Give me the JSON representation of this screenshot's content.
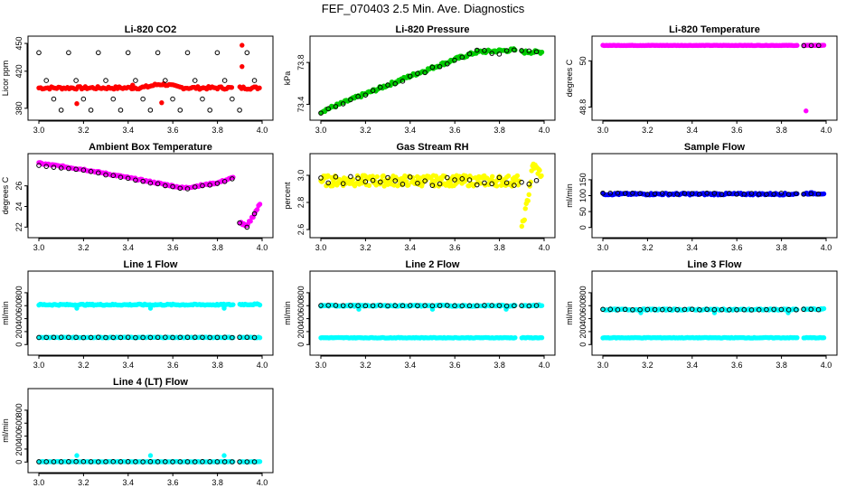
{
  "title": "FEF_070403  2.5 Min. Ave. Diagnostics",
  "colors": {
    "black": "#000000",
    "red": "#ff0000",
    "green": "#00cc00",
    "magenta": "#ff00ff",
    "yellow": "#ffff00",
    "blue": "#0000ff",
    "cyan": "#00ffff"
  },
  "chart_data": [
    {
      "type": "scatter",
      "title": "Li-820 CO2",
      "ylabel": "Licor ppm",
      "xlim": [
        3.0,
        4.0
      ],
      "ylim": [
        373,
        452
      ],
      "xticks": [
        "3.0",
        "3.2",
        "3.4",
        "3.6",
        "3.8",
        "4.0"
      ],
      "yticks": [
        {
          "v": 380,
          "label": "380"
        },
        {
          "v": 420,
          "label": "420"
        },
        {
          "v": 450,
          "label": "450"
        }
      ],
      "series": [
        {
          "name": "CO2 red",
          "color": "red",
          "fill": true,
          "start": 3.0,
          "end": 3.87,
          "step": 0.008,
          "base": 402,
          "bump": [
            3.55,
            0.06,
            4
          ],
          "noise": 1.5,
          "outliers": [
            [
              3.17,
              385
            ],
            [
              3.42,
              405
            ],
            [
              3.55,
              386
            ]
          ]
        },
        {
          "name": "CO2 red (2)",
          "color": "red",
          "fill": true,
          "start": 3.9,
          "end": 3.99,
          "step": 0.008,
          "base": 402,
          "noise": 1.5,
          "outliers": [
            [
              3.91,
              448
            ],
            [
              3.91,
              425
            ]
          ]
        },
        {
          "name": "CO2 black",
          "color": "black",
          "fill": false,
          "start": 3.0,
          "end": 3.99,
          "step": 0.0333,
          "levels": [
            440,
            410,
            390,
            378
          ],
          "noise": 0
        }
      ]
    },
    {
      "type": "scatter",
      "title": "Li-820 Pressure",
      "ylabel": "kPa",
      "xlim": [
        3.0,
        4.0
      ],
      "ylim": [
        73.3,
        74.0
      ],
      "xticks": [
        "3.0",
        "3.2",
        "3.4",
        "3.6",
        "3.8",
        "4.0"
      ],
      "yticks": [
        {
          "v": 73.4,
          "label": "73.4"
        },
        {
          "v": 73.8,
          "label": "73.8"
        }
      ],
      "series": [
        {
          "name": "Pressure green",
          "color": "green",
          "fill": true,
          "start": 3.0,
          "end": 3.87,
          "step": 0.006,
          "path": [
            [
              3.0,
              73.33
            ],
            [
              3.2,
              73.5
            ],
            [
              3.4,
              73.67
            ],
            [
              3.6,
              73.83
            ],
            [
              3.7,
              73.9
            ],
            [
              3.87,
              73.92
            ]
          ],
          "noise": 0.015
        },
        {
          "name": "Pressure green (2)",
          "color": "green",
          "fill": true,
          "start": 3.9,
          "end": 3.99,
          "step": 0.006,
          "path": [
            [
              3.9,
              73.9
            ],
            [
              3.99,
              73.9
            ]
          ],
          "noise": 0.015
        },
        {
          "name": "Pressure black",
          "color": "black",
          "fill": false,
          "start": 3.0,
          "end": 3.99,
          "step": 0.0333,
          "path": [
            [
              3.0,
              73.33
            ],
            [
              3.2,
              73.5
            ],
            [
              3.4,
              73.67
            ],
            [
              3.6,
              73.83
            ],
            [
              3.7,
              73.9
            ],
            [
              3.99,
              73.9
            ]
          ],
          "noise": 0.02
        }
      ]
    },
    {
      "type": "scatter",
      "title": "Li-820 Temperature",
      "ylabel": "degrees C",
      "xlim": [
        3.0,
        4.0
      ],
      "ylim": [
        48.6,
        50.5
      ],
      "xticks": [
        "3.0",
        "3.2",
        "3.4",
        "3.6",
        "3.8",
        "4.0"
      ],
      "yticks": [
        {
          "v": 48.8,
          "label": "48.8"
        },
        {
          "v": 50.0,
          "label": "50"
        }
      ],
      "series": [
        {
          "name": "Temp magenta",
          "color": "magenta",
          "fill": true,
          "start": 3.0,
          "end": 3.87,
          "step": 0.006,
          "base": 50.4,
          "noise": 0.005,
          "outliers": [
            [
              3.91,
              48.7
            ]
          ]
        },
        {
          "name": "Temp magenta (2)",
          "color": "magenta",
          "fill": true,
          "start": 3.9,
          "end": 3.99,
          "step": 0.006,
          "base": 50.4,
          "noise": 0.005
        },
        {
          "name": "Temp black",
          "color": "black",
          "fill": false,
          "start": 3.9,
          "end": 3.99,
          "step": 0.0333,
          "base": 50.4,
          "noise": 0.005
        }
      ]
    },
    {
      "type": "scatter",
      "title": "Ambient Box Temperature",
      "ylabel": "degrees C",
      "xlim": [
        3.0,
        4.0
      ],
      "ylim": [
        21.5,
        28.6
      ],
      "xticks": [
        "3.0",
        "3.2",
        "3.4",
        "3.6",
        "3.8",
        "4.0"
      ],
      "yticks": [
        {
          "v": 22,
          "label": "22"
        },
        {
          "v": 24,
          "label": "24"
        },
        {
          "v": 26,
          "label": "26"
        }
      ],
      "series": [
        {
          "name": "Ambient magenta",
          "color": "magenta",
          "fill": true,
          "start": 3.0,
          "end": 3.87,
          "step": 0.006,
          "path": [
            [
              3.0,
              28.2
            ],
            [
              3.2,
              27.6
            ],
            [
              3.4,
              26.8
            ],
            [
              3.65,
              25.8
            ],
            [
              3.8,
              26.3
            ],
            [
              3.87,
              26.8
            ]
          ],
          "noise": 0.08
        },
        {
          "name": "Ambient magenta (2)",
          "color": "magenta",
          "fill": true,
          "start": 3.9,
          "end": 3.99,
          "step": 0.006,
          "path": [
            [
              3.9,
              22.5
            ],
            [
              3.93,
              22.0
            ],
            [
              3.99,
              24.2
            ]
          ],
          "noise": 0.15
        },
        {
          "name": "Ambient black",
          "color": "black",
          "fill": false,
          "start": 3.0,
          "end": 3.99,
          "step": 0.0333,
          "path": [
            [
              3.0,
              28.0
            ],
            [
              3.2,
              27.5
            ],
            [
              3.4,
              26.7
            ],
            [
              3.65,
              25.7
            ],
            [
              3.8,
              26.2
            ],
            [
              3.87,
              26.7
            ],
            [
              3.9,
              22.3
            ],
            [
              3.93,
              21.9
            ],
            [
              3.99,
              24.3
            ]
          ],
          "noise": 0.05
        }
      ]
    },
    {
      "type": "scatter",
      "title": "Gas Stream RH",
      "ylabel": "percent",
      "xlim": [
        3.0,
        4.0
      ],
      "ylim": [
        2.58,
        3.12
      ],
      "xticks": [
        "3.0",
        "3.2",
        "3.4",
        "3.6",
        "3.8",
        "4.0"
      ],
      "yticks": [
        {
          "v": 2.6,
          "label": "2.6"
        },
        {
          "v": 2.8,
          "label": "2.8"
        },
        {
          "v": 3.0,
          "label": "3.0"
        }
      ],
      "series": [
        {
          "name": "RH yellow",
          "color": "yellow",
          "fill": true,
          "start": 3.0,
          "end": 3.89,
          "step": 0.004,
          "base": 2.96,
          "noise": 0.04
        },
        {
          "name": "RH yellow (2)",
          "color": "yellow",
          "fill": true,
          "start": 3.9,
          "end": 3.99,
          "step": 0.004,
          "path": [
            [
              3.9,
              2.6
            ],
            [
              3.93,
              2.85
            ],
            [
              3.95,
              3.08
            ],
            [
              3.99,
              3.0
            ]
          ],
          "noise": 0.03
        },
        {
          "name": "RH black",
          "color": "black",
          "fill": false,
          "start": 3.0,
          "end": 3.99,
          "step": 0.0333,
          "base": 2.96,
          "noise": 0.035
        }
      ]
    },
    {
      "type": "scatter",
      "title": "Sample Flow",
      "ylabel": "ml/min",
      "xlim": [
        3.0,
        4.0
      ],
      "ylim": [
        -15,
        215
      ],
      "xticks": [
        "3.0",
        "3.2",
        "3.4",
        "3.6",
        "3.8",
        "4.0"
      ],
      "yticks": [
        {
          "v": 0,
          "label": "0"
        },
        {
          "v": 50,
          "label": "50"
        },
        {
          "v": 100,
          "label": "100"
        },
        {
          "v": 150,
          "label": "150"
        }
      ],
      "series": [
        {
          "name": "Sample blue",
          "color": "blue",
          "fill": true,
          "start": 3.0,
          "end": 3.87,
          "step": 0.006,
          "base": 105,
          "noise": 3
        },
        {
          "name": "Sample blue (2)",
          "color": "blue",
          "fill": true,
          "start": 3.9,
          "end": 3.99,
          "step": 0.006,
          "base": 107,
          "noise": 3
        },
        {
          "name": "Sample black",
          "color": "black",
          "fill": false,
          "start": 3.0,
          "end": 3.99,
          "step": 0.0333,
          "base": 106,
          "noise": 2
        }
      ]
    },
    {
      "type": "scatter",
      "title": "Line 1 Flow",
      "ylabel": "ml/min",
      "xlim": [
        3.0,
        4.0
      ],
      "ylim": [
        -80,
        1050
      ],
      "xticks": [
        "3.0",
        "3.2",
        "3.4",
        "3.6",
        "3.8",
        "4.0"
      ],
      "yticks": [
        {
          "v": 0,
          "label": "0"
        },
        {
          "v": 200,
          "label": "200"
        },
        {
          "v": 400,
          "label": "400"
        },
        {
          "v": 600,
          "label": "600"
        },
        {
          "v": 800,
          "label": "800"
        }
      ],
      "series": [
        {
          "name": "Line1 cyan high",
          "color": "cyan",
          "fill": true,
          "start": 3.0,
          "end": 3.87,
          "step": 0.006,
          "base": 615,
          "noise": 10,
          "outliers": [
            [
              3.17,
              560
            ],
            [
              3.5,
              560
            ],
            [
              3.83,
              560
            ]
          ]
        },
        {
          "name": "Line1 cyan high (2)",
          "color": "cyan",
          "fill": true,
          "start": 3.9,
          "end": 3.99,
          "step": 0.006,
          "base": 620,
          "noise": 10
        },
        {
          "name": "Line1 cyan low",
          "color": "cyan",
          "fill": true,
          "start": 3.0,
          "end": 3.87,
          "step": 0.006,
          "base": 110,
          "noise": 5
        },
        {
          "name": "Line1 cyan low (2)",
          "color": "cyan",
          "fill": true,
          "start": 3.9,
          "end": 3.99,
          "step": 0.006,
          "base": 110,
          "noise": 5
        },
        {
          "name": "Line1 black",
          "color": "black",
          "fill": false,
          "start": 3.0,
          "end": 3.99,
          "step": 0.0333,
          "base": 110,
          "noise": 3
        }
      ]
    },
    {
      "type": "scatter",
      "title": "Line 2 Flow",
      "ylabel": "ml/min",
      "xlim": [
        3.0,
        4.0
      ],
      "ylim": [
        -80,
        1050
      ],
      "xticks": [
        "3.0",
        "3.2",
        "3.4",
        "3.6",
        "3.8",
        "4.0"
      ],
      "yticks": [
        {
          "v": 0,
          "label": "0"
        },
        {
          "v": 200,
          "label": "200"
        },
        {
          "v": 400,
          "label": "400"
        },
        {
          "v": 600,
          "label": "600"
        },
        {
          "v": 800,
          "label": "800"
        }
      ],
      "series": [
        {
          "name": "Line2 cyan high",
          "color": "cyan",
          "fill": true,
          "start": 3.0,
          "end": 3.87,
          "step": 0.006,
          "base": 600,
          "noise": 10,
          "outliers": [
            [
              3.17,
              545
            ],
            [
              3.5,
              545
            ],
            [
              3.83,
              545
            ]
          ]
        },
        {
          "name": "Line2 cyan high (2)",
          "color": "cyan",
          "fill": true,
          "start": 3.9,
          "end": 3.99,
          "step": 0.006,
          "base": 605,
          "noise": 10
        },
        {
          "name": "Line2 cyan low",
          "color": "cyan",
          "fill": true,
          "start": 3.0,
          "end": 3.87,
          "step": 0.006,
          "base": 105,
          "noise": 5
        },
        {
          "name": "Line2 cyan low (2)",
          "color": "cyan",
          "fill": true,
          "start": 3.9,
          "end": 3.99,
          "step": 0.006,
          "base": 105,
          "noise": 5
        },
        {
          "name": "Line2 black",
          "color": "black",
          "fill": false,
          "start": 3.0,
          "end": 3.99,
          "step": 0.0333,
          "base": 600,
          "noise": 5
        }
      ]
    },
    {
      "type": "scatter",
      "title": "Line 3 Flow",
      "ylabel": "ml/min",
      "xlim": [
        3.0,
        4.0
      ],
      "ylim": [
        -80,
        1050
      ],
      "xticks": [
        "3.0",
        "3.2",
        "3.4",
        "3.6",
        "3.8",
        "4.0"
      ],
      "yticks": [
        {
          "v": 0,
          "label": "0"
        },
        {
          "v": 200,
          "label": "200"
        },
        {
          "v": 400,
          "label": "400"
        },
        {
          "v": 600,
          "label": "600"
        },
        {
          "v": 800,
          "label": "800"
        }
      ],
      "series": [
        {
          "name": "Line3 cyan high",
          "color": "cyan",
          "fill": true,
          "start": 3.0,
          "end": 3.87,
          "step": 0.006,
          "base": 540,
          "noise": 10,
          "outliers": [
            [
              3.17,
              490
            ],
            [
              3.5,
              490
            ],
            [
              3.83,
              490
            ]
          ]
        },
        {
          "name": "Line3 cyan high (2)",
          "color": "cyan",
          "fill": true,
          "start": 3.9,
          "end": 3.99,
          "step": 0.006,
          "base": 545,
          "noise": 10
        },
        {
          "name": "Line3 cyan low",
          "color": "cyan",
          "fill": true,
          "start": 3.0,
          "end": 3.87,
          "step": 0.006,
          "base": 105,
          "noise": 5
        },
        {
          "name": "Line3 cyan low (2)",
          "color": "cyan",
          "fill": true,
          "start": 3.9,
          "end": 3.99,
          "step": 0.006,
          "base": 105,
          "noise": 5
        },
        {
          "name": "Line3 black",
          "color": "black",
          "fill": false,
          "start": 3.0,
          "end": 3.99,
          "step": 0.0333,
          "base": 540,
          "noise": 5
        }
      ]
    },
    {
      "type": "scatter",
      "title": "Line 4 (LT) Flow",
      "ylabel": "ml/min",
      "xlim": [
        3.0,
        4.0
      ],
      "ylim": [
        -80,
        1050
      ],
      "xticks": [
        "3.0",
        "3.2",
        "3.4",
        "3.6",
        "3.8",
        "4.0"
      ],
      "yticks": [
        {
          "v": 0,
          "label": "0"
        },
        {
          "v": 200,
          "label": "200"
        },
        {
          "v": 400,
          "label": "400"
        },
        {
          "v": 600,
          "label": "600"
        },
        {
          "v": 800,
          "label": "800"
        }
      ],
      "series": [
        {
          "name": "Line4 cyan",
          "color": "cyan",
          "fill": true,
          "start": 3.0,
          "end": 3.87,
          "step": 0.006,
          "base": 5,
          "noise": 3,
          "outliers": [
            [
              3.17,
              100
            ],
            [
              3.5,
              100
            ],
            [
              3.83,
              100
            ]
          ]
        },
        {
          "name": "Line4 cyan (2)",
          "color": "cyan",
          "fill": true,
          "start": 3.9,
          "end": 3.99,
          "step": 0.006,
          "base": 5,
          "noise": 3
        },
        {
          "name": "Line4 black",
          "color": "black",
          "fill": false,
          "start": 3.0,
          "end": 3.99,
          "step": 0.0333,
          "base": 5,
          "noise": 2
        }
      ]
    }
  ]
}
